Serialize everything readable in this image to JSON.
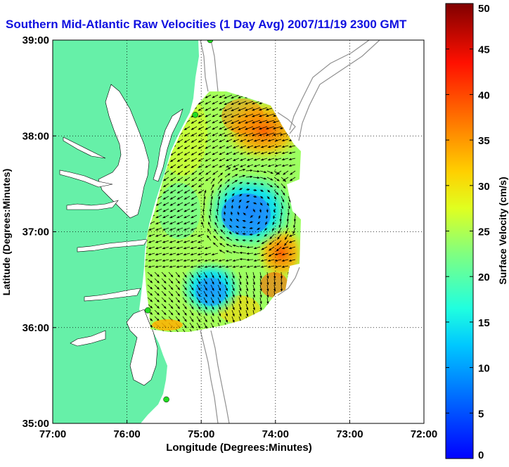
{
  "figure": {
    "title": "Southern Mid-Atlantic Raw Velocities (1 Day Avg) 2007/11/19 2300 GMT",
    "xlabel": "Longitude (Degrees:Minutes)",
    "ylabel": "Latitude (Degrees:Minutes)"
  },
  "map_axes": {
    "lon_ticks": [
      {
        "value": -77,
        "label": "77:00"
      },
      {
        "value": -76,
        "label": "76:00"
      },
      {
        "value": -75,
        "label": "75:00"
      },
      {
        "value": -74,
        "label": "74:00"
      },
      {
        "value": -73,
        "label": "73:00"
      },
      {
        "value": -72,
        "label": "72:00"
      }
    ],
    "lat_ticks": [
      {
        "value": 39,
        "label": "39:00"
      },
      {
        "value": 38,
        "label": "38:00"
      },
      {
        "value": 37,
        "label": "37:00"
      },
      {
        "value": 36,
        "label": "36:00"
      },
      {
        "value": 35,
        "label": "35:00"
      }
    ],
    "lon_range": [
      -77,
      -72
    ],
    "lat_range": [
      35,
      39
    ],
    "grid": "dotted"
  },
  "colorbar": {
    "label": "Surface Velocity (cm/s)",
    "min": 0,
    "max": 50,
    "ticks": [
      {
        "value": 50,
        "label": "50"
      },
      {
        "value": 45,
        "label": "45"
      },
      {
        "value": 40,
        "label": "40"
      },
      {
        "value": 35,
        "label": "35"
      },
      {
        "value": 30,
        "label": "30"
      },
      {
        "value": 25,
        "label": "25"
      },
      {
        "value": 20,
        "label": "20"
      },
      {
        "value": 15,
        "label": "15"
      },
      {
        "value": 10,
        "label": "10"
      },
      {
        "value": 5,
        "label": "5"
      },
      {
        "value": 0,
        "label": "0"
      }
    ],
    "colormap": "jet"
  },
  "colors": {
    "land": "#66f0a8",
    "title": "#1010e0",
    "contour": "#909090",
    "station": "#22dd22"
  },
  "stations": [
    {
      "lon": -74.88,
      "lat": 39.0
    },
    {
      "lon": -75.08,
      "lat": 38.22
    },
    {
      "lon": -75.72,
      "lat": 36.18
    },
    {
      "lon": -75.47,
      "lat": 35.25
    }
  ]
}
